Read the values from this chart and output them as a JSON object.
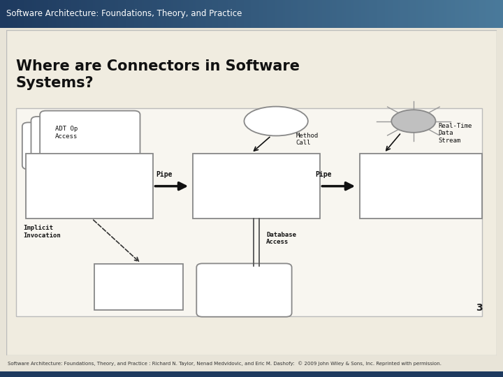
{
  "title_bar_text": "Software Architecture: Foundations, Theory, and Practice",
  "title_bar_bg_left": "#1e3a5f",
  "title_bar_bg_right": "#4a7a9b",
  "page_bg": "#e8e4d8",
  "slide_bg": "#f0ece0",
  "slide_border": "#aaaaaa",
  "footer_text": "Software Architecture: Foundations, Theory, and Practice : Richard N. Taylor, Nenad Medvidovic, and Eric M. Dashofy:  © 2009 John Wiley & Sons, Inc. Reprinted with permission.",
  "page_number": "3",
  "bottom_bar_color": "#1e3a5f",
  "label_color": "#111111",
  "box_edge": "#888888",
  "arrow_color": "#111111"
}
